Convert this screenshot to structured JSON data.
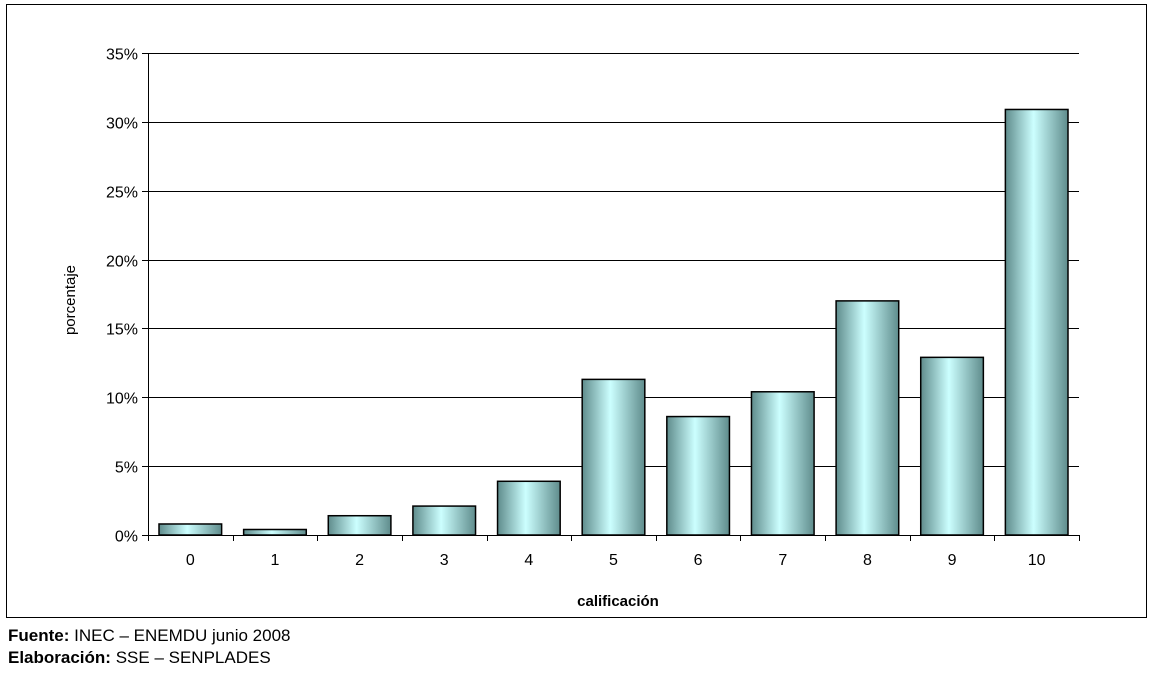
{
  "chart_data": {
    "type": "bar",
    "title": "",
    "xlabel": "calificación",
    "ylabel": "porcentaje",
    "categories": [
      "0",
      "1",
      "2",
      "3",
      "4",
      "5",
      "6",
      "7",
      "8",
      "9",
      "10"
    ],
    "values": [
      0.8,
      0.4,
      1.4,
      2.1,
      3.9,
      11.3,
      8.6,
      10.4,
      17.0,
      12.9,
      30.9
    ],
    "value_unit": "%",
    "ylim": [
      0,
      35
    ],
    "yticks": [
      0,
      5,
      10,
      15,
      20,
      25,
      30,
      35
    ],
    "ytick_labels": [
      "0%",
      "5%",
      "10%",
      "15%",
      "20%",
      "25%",
      "30%",
      "35%"
    ],
    "grid": true,
    "legend": "none",
    "bar_gradient": [
      "#5f8c8c",
      "#ccffff",
      "#5f8c8c"
    ]
  },
  "footer": {
    "source_label": "Fuente:",
    "source_text": "INEC – ENEMDU junio 2008",
    "credit_label": "Elaboración:",
    "credit_text": "SSE – SENPLADES"
  }
}
